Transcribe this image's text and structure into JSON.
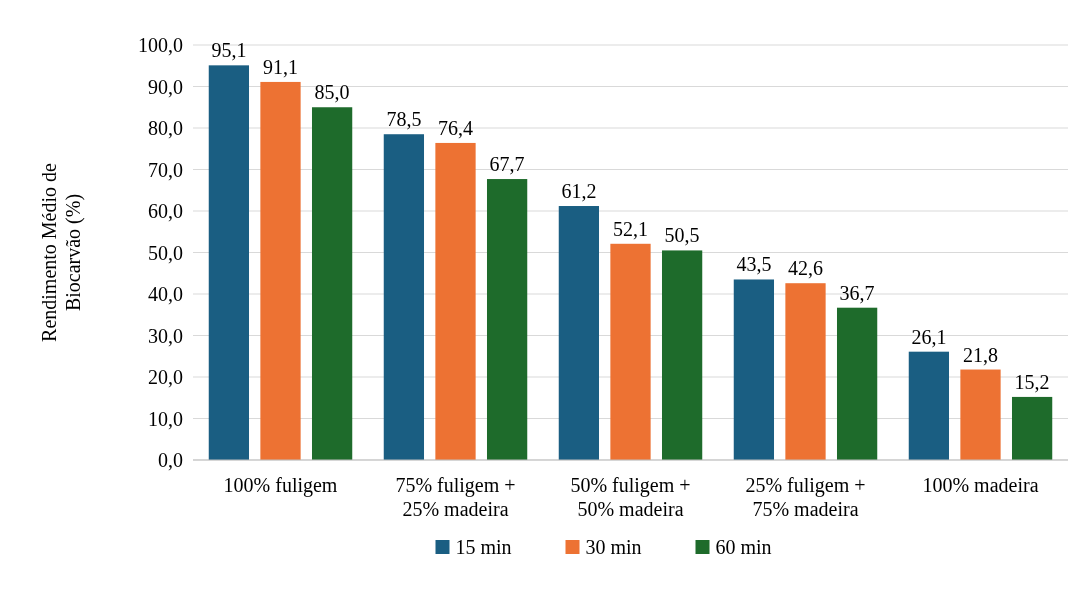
{
  "chart_data": {
    "type": "bar",
    "ylabel": "Rendimento Médio de Biocarvão (%)",
    "categories": [
      "100% fuligem",
      "75% fuligem + 25% madeira",
      "50% fuligem + 50% madeira",
      "25% fuligem + 75% madeira",
      "100% madeira"
    ],
    "series": [
      {
        "name": "15 min",
        "color": "#1a5e82",
        "values": [
          95.1,
          78.5,
          61.2,
          43.5,
          26.1
        ],
        "value_labels": [
          "95,1",
          "78,5",
          "61,2",
          "43,5",
          "26,1"
        ]
      },
      {
        "name": "30 min",
        "color": "#ed7233",
        "values": [
          91.1,
          76.4,
          52.1,
          42.6,
          21.8
        ],
        "value_labels": [
          "91,1",
          "76,4",
          "52,1",
          "42,6",
          "21,8"
        ]
      },
      {
        "name": "60 min",
        "color": "#1e6b2b",
        "values": [
          85.0,
          67.7,
          50.5,
          36.7,
          15.2
        ],
        "value_labels": [
          "85,0",
          "67,7",
          "50,5",
          "36,7",
          "15,2"
        ]
      }
    ],
    "ylim": [
      0,
      100
    ],
    "yticks": [
      {
        "value": 0,
        "label": "0,0"
      },
      {
        "value": 10,
        "label": "10,0"
      },
      {
        "value": 20,
        "label": "20,0"
      },
      {
        "value": 30,
        "label": "30,0"
      },
      {
        "value": 40,
        "label": "40,0"
      },
      {
        "value": 50,
        "label": "50,0"
      },
      {
        "value": 60,
        "label": "60,0"
      },
      {
        "value": 70,
        "label": "70,0"
      },
      {
        "value": 80,
        "label": "80,0"
      },
      {
        "value": 90,
        "label": "90,0"
      },
      {
        "value": 100,
        "label": "100,0"
      }
    ],
    "grid": "y",
    "legend": "bottom"
  }
}
